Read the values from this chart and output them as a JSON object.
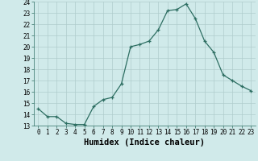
{
  "x": [
    0,
    1,
    2,
    3,
    4,
    5,
    6,
    7,
    8,
    9,
    10,
    11,
    12,
    13,
    14,
    15,
    16,
    17,
    18,
    19,
    20,
    21,
    22,
    23
  ],
  "y": [
    14.5,
    13.8,
    13.8,
    13.2,
    13.1,
    13.1,
    14.7,
    15.3,
    15.5,
    16.7,
    20.0,
    20.2,
    20.5,
    21.5,
    23.2,
    23.3,
    23.8,
    22.5,
    20.5,
    19.5,
    17.5,
    17.0,
    16.5,
    16.1
  ],
  "xlabel": "Humidex (Indice chaleur)",
  "ylim": [
    13,
    24
  ],
  "yticks": [
    13,
    14,
    15,
    16,
    17,
    18,
    19,
    20,
    21,
    22,
    23,
    24
  ],
  "xticks": [
    0,
    1,
    2,
    3,
    4,
    5,
    6,
    7,
    8,
    9,
    10,
    11,
    12,
    13,
    14,
    15,
    16,
    17,
    18,
    19,
    20,
    21,
    22,
    23
  ],
  "line_color": "#2d6e62",
  "marker_color": "#2d6e62",
  "bg_color": "#d0eaea",
  "grid_color": "#b0cccc",
  "tick_label_fontsize": 5.5,
  "xlabel_fontsize": 7.5
}
